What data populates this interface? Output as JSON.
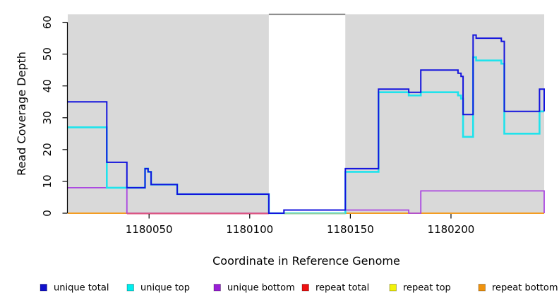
{
  "chart_data": {
    "type": "line",
    "subtype": "step-coverage",
    "title": "",
    "xlabel": "Coordinate in Reference Genome",
    "ylabel": "Read Coverage Depth",
    "xlim": [
      1180009.6,
      1180246.3
    ],
    "ylim": [
      0,
      62.5
    ],
    "x_ticks": [
      1180050,
      1180100,
      1180150,
      1180200
    ],
    "y_ticks": [
      0,
      10,
      20,
      30,
      40,
      50,
      60
    ],
    "grid": false,
    "plot_background_color": "#d9d9d9",
    "gap_region": [
      1180109.5,
      1180147.5
    ],
    "gap_top_line_color": "#8a8a8a",
    "background_regions": [
      [
        1180009.6,
        1180109.5
      ],
      [
        1180147.5,
        1180246.3
      ]
    ],
    "series": [
      {
        "name": "unique total",
        "color": "#1414dd",
        "steps": [
          [
            1180009.6,
            35
          ],
          [
            1180029,
            16
          ],
          [
            1180039,
            8
          ],
          [
            1180048,
            14
          ],
          [
            1180049.5,
            13
          ],
          [
            1180051,
            9
          ],
          [
            1180064,
            6
          ],
          [
            1180109.5,
            0
          ],
          [
            1180117,
            1
          ],
          [
            1180147.5,
            14
          ],
          [
            1180164,
            39
          ],
          [
            1180179,
            38
          ],
          [
            1180185,
            45
          ],
          [
            1180203.5,
            44
          ],
          [
            1180205,
            43
          ],
          [
            1180206,
            31
          ],
          [
            1180211,
            56
          ],
          [
            1180212.5,
            55
          ],
          [
            1180225,
            54
          ],
          [
            1180226.5,
            32
          ],
          [
            1180244,
            39
          ]
        ],
        "end_value": 32
      },
      {
        "name": "unique top",
        "color": "#1fe3ec",
        "steps": [
          [
            1180009.6,
            27
          ],
          [
            1180029,
            8
          ],
          [
            1180048,
            14
          ],
          [
            1180049.5,
            13
          ],
          [
            1180051,
            9
          ],
          [
            1180064,
            6
          ],
          [
            1180109.5,
            0
          ],
          [
            1180147.5,
            13
          ],
          [
            1180164,
            38
          ],
          [
            1180179,
            37
          ],
          [
            1180185,
            38
          ],
          [
            1180203.5,
            37
          ],
          [
            1180205,
            36
          ],
          [
            1180206,
            24
          ],
          [
            1180211,
            49
          ],
          [
            1180212.5,
            48
          ],
          [
            1180225,
            47
          ],
          [
            1180226.5,
            25
          ],
          [
            1180244,
            32
          ]
        ],
        "end_value": 32
      },
      {
        "name": "unique bottom",
        "color": "#ab47e0",
        "steps": [
          [
            1180009.6,
            8
          ],
          [
            1180039,
            0
          ],
          [
            1180117,
            1
          ],
          [
            1180179,
            0
          ],
          [
            1180185,
            7
          ]
        ],
        "end_value": 0
      },
      {
        "name": "repeat total",
        "color": "#e8120c",
        "steps": [
          [
            1180009.6,
            0
          ]
        ],
        "end_value": 0
      },
      {
        "name": "repeat top",
        "color": "#f5f50a",
        "steps": [
          [
            1180009.6,
            0
          ]
        ],
        "end_value": 0
      },
      {
        "name": "repeat bottom",
        "color": "#f79518",
        "steps": [
          [
            1180009.6,
            0
          ]
        ],
        "end_value": 0
      }
    ],
    "overlap_artifacts": [
      {
        "color": "#dd5580",
        "value": 0,
        "from": 1180039,
        "to": 1180109.5
      },
      {
        "color": "#93cf9e",
        "value": 0,
        "from": 1180117,
        "to": 1180147.5
      }
    ],
    "legend": {
      "position": "bottom",
      "entries": [
        {
          "label": "unique total",
          "color": "#1111cc"
        },
        {
          "label": "unique top",
          "color": "#00eeee"
        },
        {
          "label": "unique bottom",
          "color": "#991fd6"
        },
        {
          "label": "repeat total",
          "color": "#ee1111"
        },
        {
          "label": "repeat top",
          "color": "#f2f20a"
        },
        {
          "label": "repeat bottom",
          "color": "#f0930e"
        }
      ]
    }
  }
}
